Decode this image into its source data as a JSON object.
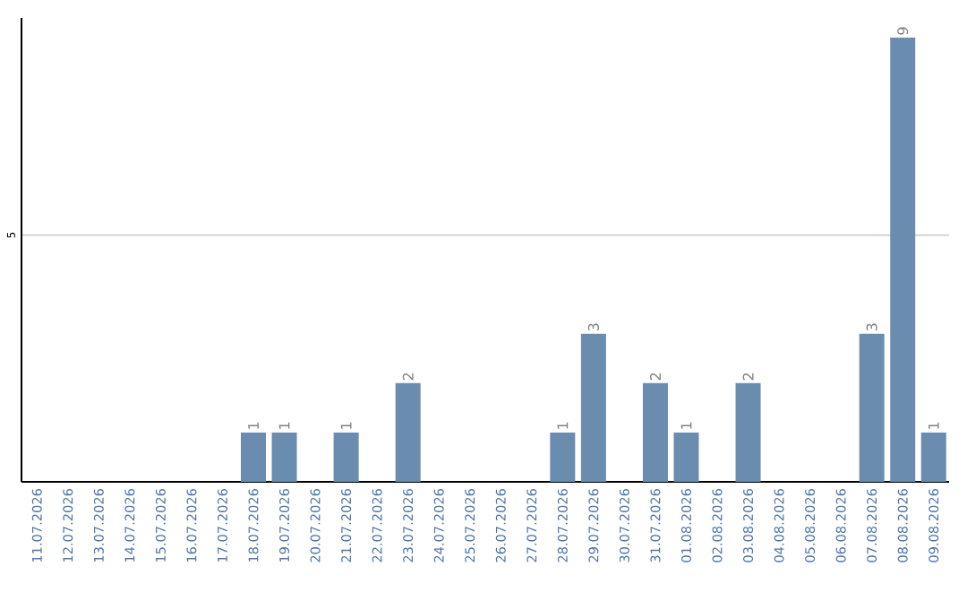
{
  "chart_data": {
    "type": "bar",
    "categories": [
      "11.07.2026",
      "12.07.2026",
      "13.07.2026",
      "14.07.2026",
      "15.07.2026",
      "16.07.2026",
      "17.07.2026",
      "18.07.2026",
      "19.07.2026",
      "20.07.2026",
      "21.07.2026",
      "22.07.2026",
      "23.07.2026",
      "24.07.2026",
      "25.07.2026",
      "26.07.2026",
      "27.07.2026",
      "28.07.2026",
      "29.07.2026",
      "30.07.2026",
      "31.07.2026",
      "01.08.2026",
      "02.08.2026",
      "03.08.2026",
      "04.08.2026",
      "05.08.2026",
      "06.08.2026",
      "07.08.2026",
      "08.08.2026",
      "09.08.2026"
    ],
    "values": [
      0,
      0,
      0,
      0,
      0,
      0,
      0,
      1,
      1,
      0,
      1,
      0,
      2,
      0,
      0,
      0,
      0,
      1,
      3,
      0,
      2,
      1,
      0,
      2,
      0,
      0,
      0,
      3,
      9,
      1
    ],
    "value_labels": [
      null,
      null,
      null,
      null,
      null,
      null,
      null,
      "1",
      "1",
      null,
      "1",
      null,
      "2",
      null,
      null,
      null,
      null,
      "1",
      "3",
      null,
      "2",
      "1",
      null,
      "2",
      null,
      null,
      null,
      "3",
      "9",
      "1"
    ],
    "color": "#6a8caf",
    "ylim": [
      0,
      9.4
    ],
    "yticks": [
      5
    ],
    "grid": "y"
  }
}
